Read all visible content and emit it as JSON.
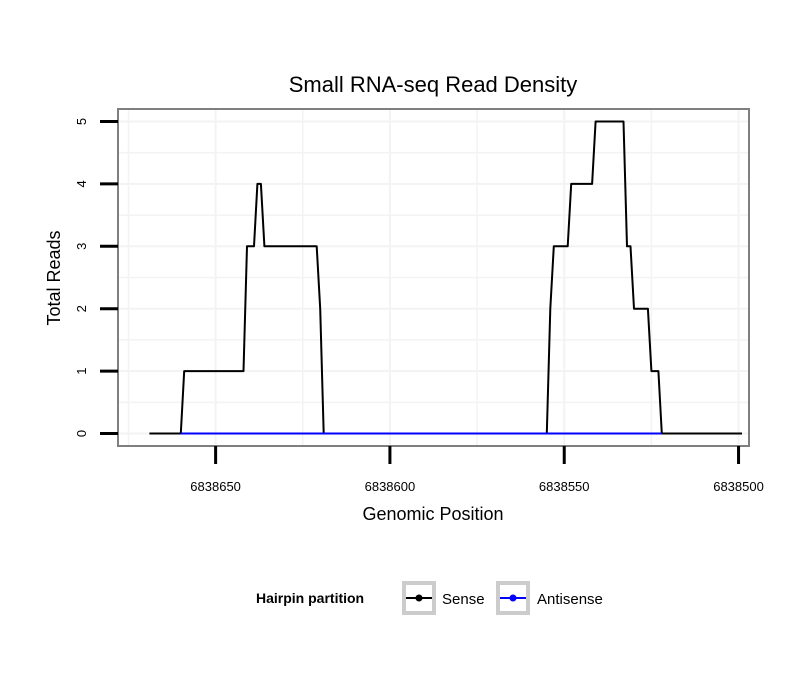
{
  "chart_data": {
    "type": "line",
    "title": "Small RNA-seq Read Density",
    "xlabel": "Genomic Position",
    "ylabel": "Total Reads",
    "xlim": [
      6838678,
      6838497
    ],
    "x_reversed": true,
    "ylim": [
      -0.2,
      5.2
    ],
    "x_ticks": [
      6838650,
      6838600,
      6838550,
      6838500
    ],
    "x_tick_labels": [
      "6838650",
      "6838600",
      "6838550",
      "6838500"
    ],
    "y_ticks": [
      0,
      1,
      2,
      3,
      4,
      5
    ],
    "y_tick_labels": [
      "0",
      "1",
      "2",
      "3",
      "4",
      "5"
    ],
    "grid": true,
    "series": [
      {
        "name": "Sense",
        "color": "#000000",
        "points": [
          [
            6838669,
            0
          ],
          [
            6838660,
            0
          ],
          [
            6838659,
            1
          ],
          [
            6838642,
            1
          ],
          [
            6838641,
            3
          ],
          [
            6838639,
            3
          ],
          [
            6838638,
            4
          ],
          [
            6838637,
            4
          ],
          [
            6838636,
            3
          ],
          [
            6838621,
            3
          ],
          [
            6838620,
            2
          ],
          [
            6838619,
            0
          ],
          [
            6838555,
            0
          ],
          [
            6838554,
            2
          ],
          [
            6838553,
            3
          ],
          [
            6838549,
            3
          ],
          [
            6838548,
            4
          ],
          [
            6838542,
            4
          ],
          [
            6838541,
            5
          ],
          [
            6838533,
            5
          ],
          [
            6838532,
            3
          ],
          [
            6838531,
            3
          ],
          [
            6838530,
            2
          ],
          [
            6838526,
            2
          ],
          [
            6838525,
            1
          ],
          [
            6838523,
            1
          ],
          [
            6838522,
            0
          ],
          [
            6838499,
            0
          ]
        ]
      },
      {
        "name": "Antisense",
        "color": "#0000ff",
        "points": [
          [
            6838660,
            0
          ],
          [
            6838619,
            0
          ],
          [
            6838555,
            0
          ],
          [
            6838522,
            0
          ]
        ]
      }
    ],
    "legend": {
      "title": "Hairpin partition",
      "position": "bottom",
      "entries": [
        "Sense",
        "Antisense"
      ]
    }
  }
}
